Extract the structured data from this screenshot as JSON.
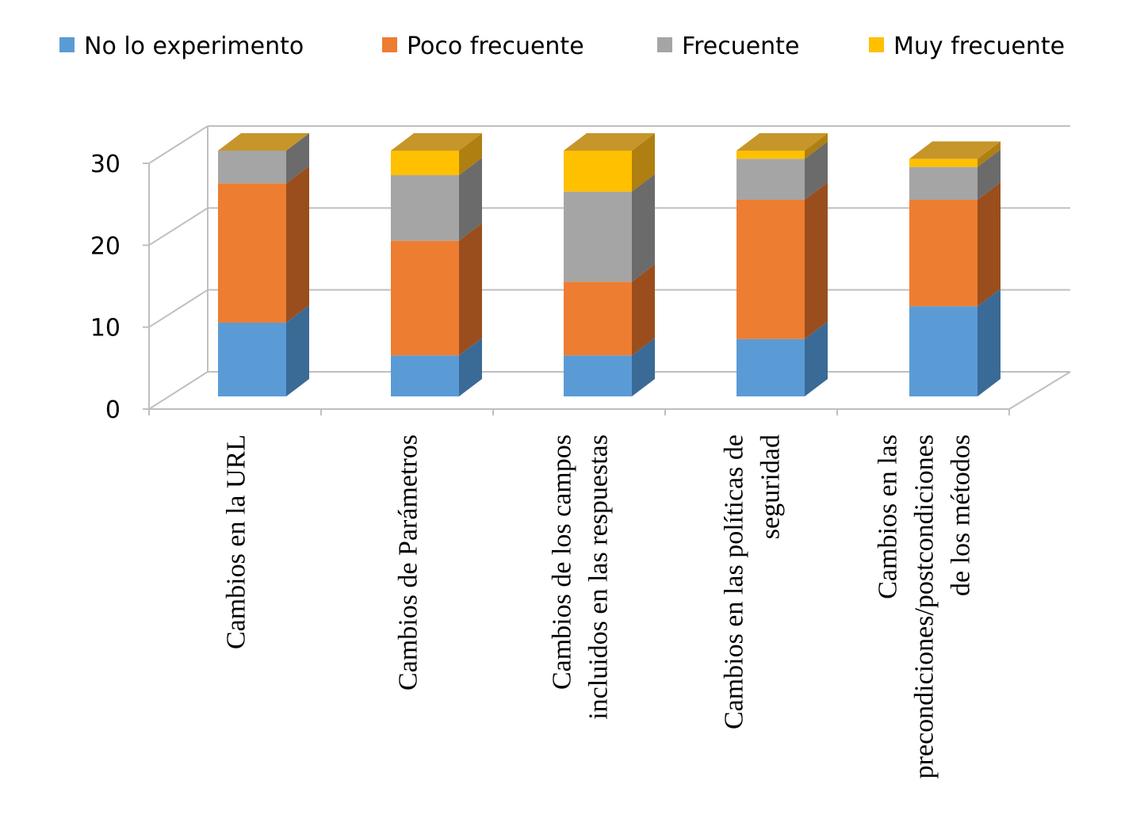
{
  "chart_data": {
    "type": "bar",
    "stacked": true,
    "three_d": true,
    "title": "",
    "xlabel": "",
    "ylabel": "",
    "ylim": [
      0,
      30
    ],
    "yticks": [
      "0",
      "10",
      "20",
      "30"
    ],
    "ytick_values": [
      0,
      10,
      20,
      30
    ],
    "grid": true,
    "legend_position": "top",
    "categories": [
      [
        "Cambios en la URL"
      ],
      [
        "Cambios de Parámetros"
      ],
      [
        "Cambios de los campos",
        "incluidos en las respuestas"
      ],
      [
        "Cambios en las políticas de",
        "seguridad"
      ],
      [
        "Cambios en las",
        "precondiciones/postcondiciones",
        "de los métodos"
      ]
    ],
    "series": [
      {
        "name": "No lo experimento",
        "color": "#5b9bd5",
        "side_color": "#3a6a96",
        "values": [
          9,
          5,
          5,
          7,
          11
        ]
      },
      {
        "name": "Poco frecuente",
        "color": "#ed7d31",
        "side_color": "#9a4e1d",
        "values": [
          17,
          14,
          9,
          17,
          13
        ]
      },
      {
        "name": "Frecuente",
        "color": "#a5a5a5",
        "side_color": "#6b6b6b",
        "values": [
          4,
          8,
          11,
          5,
          4
        ]
      },
      {
        "name": "Muy frecuente",
        "color": "#ffc000",
        "side_color": "#b07f12",
        "values": [
          0,
          3,
          5,
          1,
          1
        ]
      }
    ],
    "top_cap_color": "#c6962b"
  }
}
